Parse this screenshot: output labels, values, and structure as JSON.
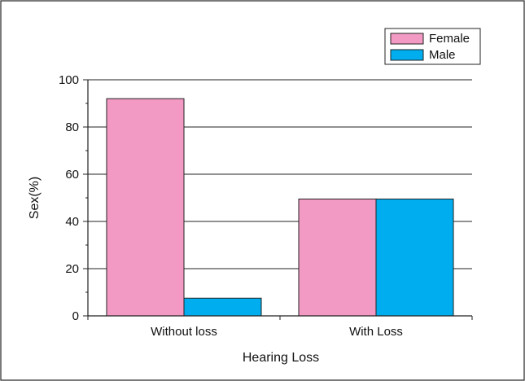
{
  "chart_data": {
    "type": "bar",
    "categories": [
      "Without loss",
      "With Loss"
    ],
    "series": [
      {
        "name": "Female",
        "values": [
          92,
          49.5
        ],
        "color": "#f39ac4"
      },
      {
        "name": "Male",
        "values": [
          7.5,
          49.5
        ],
        "color": "#00aeef"
      }
    ],
    "xlabel": "Hearing Loss",
    "ylabel": "Sex(%)",
    "ylim": [
      0,
      100
    ],
    "yticks": [
      0,
      20,
      40,
      60,
      80,
      100
    ],
    "grid": true,
    "legend_position": "top-right"
  }
}
